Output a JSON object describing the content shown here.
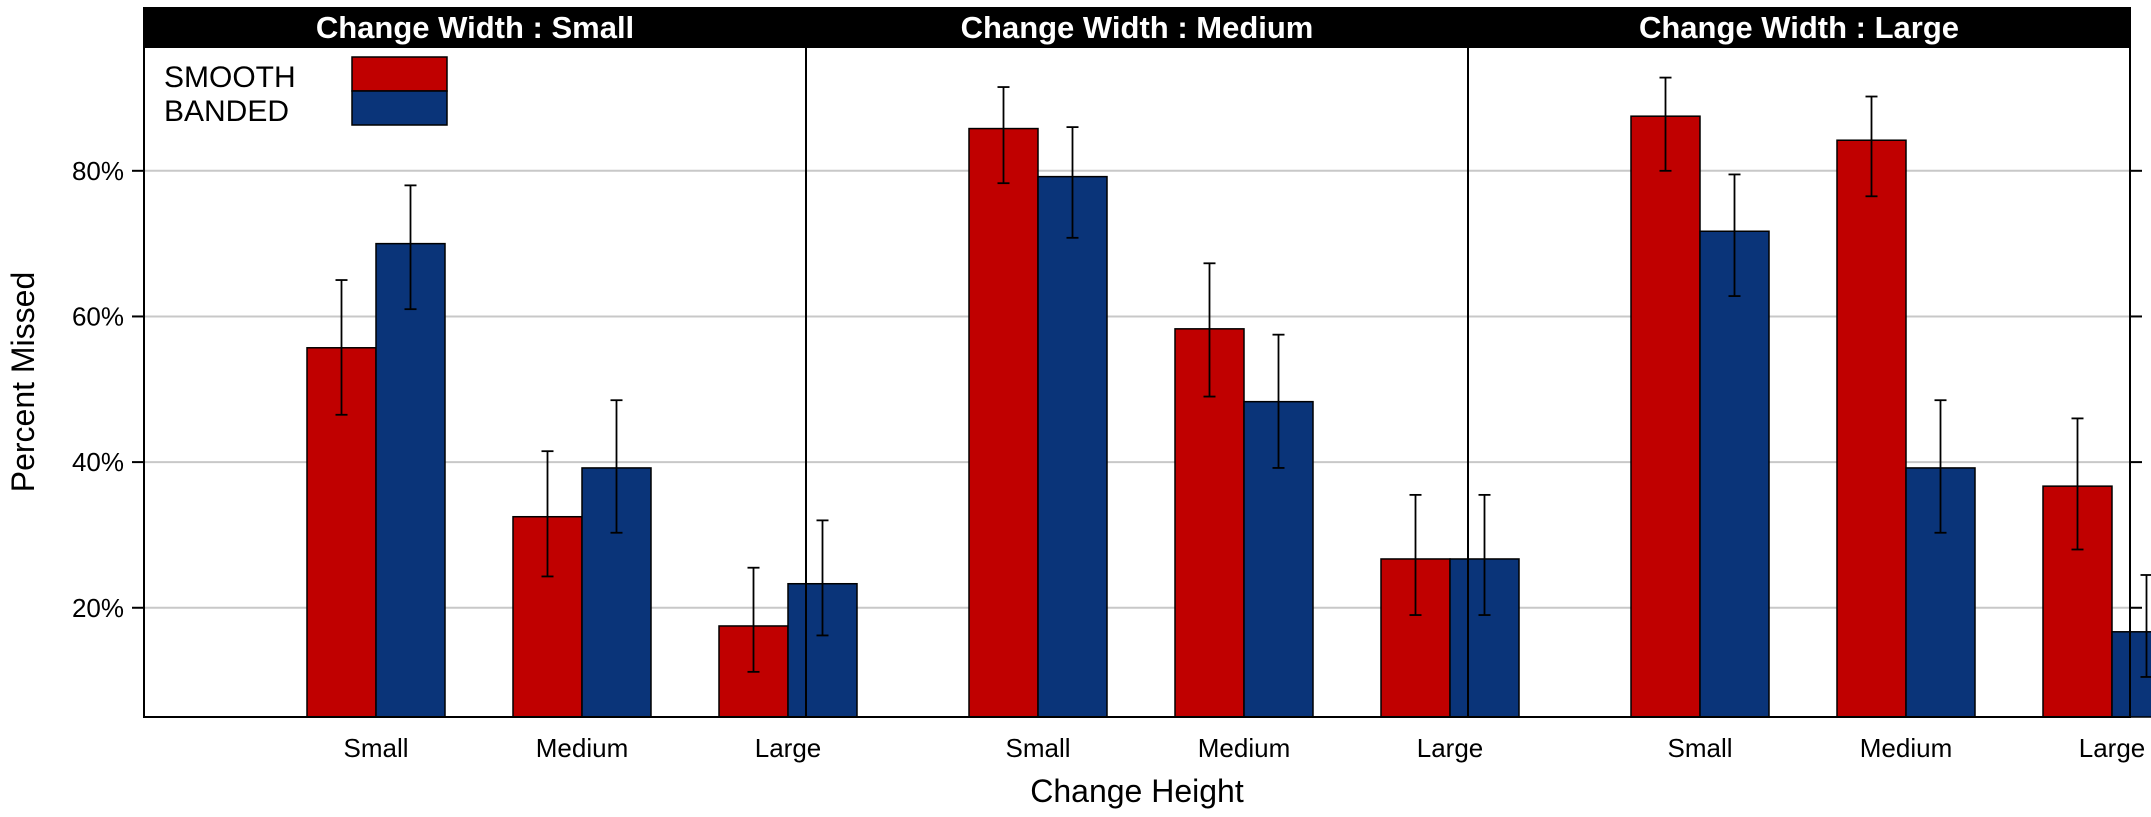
{
  "chart_data": {
    "type": "bar",
    "xlabel": "Change Height",
    "ylabel": "Percent Missed",
    "ylim": [
      5,
      97
    ],
    "y_ticks": [
      20,
      40,
      60,
      80
    ],
    "y_tick_labels": [
      "20%",
      "40%",
      "60%",
      "80%"
    ],
    "grid": "horizontal",
    "legend_position": "top-left",
    "categories": [
      "Small",
      "Medium",
      "Large"
    ],
    "series_meta": [
      {
        "name": "SMOOTH",
        "color": "#C00000"
      },
      {
        "name": "BANDED",
        "color": "#0A3479"
      }
    ],
    "panels": [
      {
        "title": "Change Width : Small",
        "series": [
          {
            "name": "SMOOTH",
            "values": [
              55.7,
              32.5,
              17.5
            ],
            "lower": [
              46.5,
              24.3,
              11.2
            ],
            "upper": [
              65.0,
              41.5,
              25.5
            ]
          },
          {
            "name": "BANDED",
            "values": [
              70.0,
              39.2,
              23.3
            ],
            "lower": [
              61.0,
              30.3,
              16.2
            ],
            "upper": [
              78.0,
              48.5,
              32.0
            ]
          }
        ]
      },
      {
        "title": "Change Width : Medium",
        "series": [
          {
            "name": "SMOOTH",
            "values": [
              85.8,
              58.3,
              26.7
            ],
            "lower": [
              78.3,
              49.0,
              19.0
            ],
            "upper": [
              91.5,
              67.3,
              35.5
            ]
          },
          {
            "name": "BANDED",
            "values": [
              79.2,
              48.3,
              26.7
            ],
            "lower": [
              70.8,
              39.2,
              19.0
            ],
            "upper": [
              86.0,
              57.5,
              35.5
            ]
          }
        ]
      },
      {
        "title": "Change Width : Large",
        "series": [
          {
            "name": "SMOOTH",
            "values": [
              87.5,
              84.2,
              36.7
            ],
            "lower": [
              80.0,
              76.5,
              28.0
            ],
            "upper": [
              92.8,
              90.2,
              46.0
            ]
          },
          {
            "name": "BANDED",
            "values": [
              71.7,
              39.2,
              16.7
            ],
            "lower": [
              62.8,
              30.3,
              10.5
            ],
            "upper": [
              79.5,
              48.5,
              24.5
            ]
          }
        ]
      }
    ]
  }
}
